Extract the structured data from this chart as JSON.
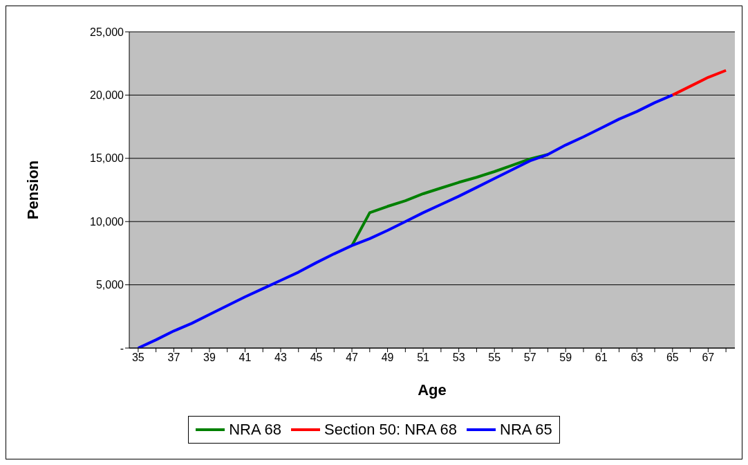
{
  "chart_data": {
    "type": "line",
    "xlabel": "Age",
    "ylabel": "Pension",
    "categories": [
      "35",
      null,
      "37",
      null,
      "39",
      null,
      "41",
      null,
      "43",
      null,
      "45",
      null,
      "47",
      null,
      "49",
      null,
      "51",
      null,
      "53",
      null,
      "55",
      null,
      "57",
      null,
      "59",
      null,
      "61",
      null,
      "63",
      null,
      "65",
      null,
      "67",
      null
    ],
    "series": [
      {
        "name": "NRA 68",
        "color": "#008000",
        "values": [
          null,
          null,
          null,
          null,
          null,
          null,
          null,
          null,
          null,
          null,
          null,
          null,
          8100,
          10700,
          11200,
          11650,
          12200,
          12650,
          13100,
          13500,
          13950,
          14450,
          14950,
          15300,
          null,
          null,
          null,
          null,
          null,
          null,
          null,
          null,
          null,
          null
        ]
      },
      {
        "name": "Section 50: NRA 68",
        "color": "#ff0000",
        "values": [
          null,
          null,
          null,
          null,
          null,
          null,
          null,
          null,
          null,
          null,
          null,
          null,
          null,
          null,
          null,
          null,
          null,
          null,
          null,
          null,
          null,
          null,
          null,
          null,
          null,
          null,
          null,
          null,
          null,
          null,
          20000,
          20700,
          21400,
          21950
        ]
      },
      {
        "name": "NRA 65",
        "color": "#0000ff",
        "values": [
          0,
          650,
          1350,
          1950,
          2650,
          3350,
          4050,
          4700,
          5350,
          6000,
          6750,
          7450,
          8100,
          8650,
          9300,
          10000,
          10700,
          11350,
          12000,
          12700,
          13400,
          14100,
          14800,
          15300,
          16050,
          16700,
          17400,
          18100,
          18700,
          19400,
          20000,
          null,
          null,
          null
        ]
      }
    ],
    "ylim": [
      0,
      25000
    ],
    "yticks": [
      {
        "value": 0,
        "label": "-"
      },
      {
        "value": 5000,
        "label": "5,000"
      },
      {
        "value": 10000,
        "label": "10,000"
      },
      {
        "value": 15000,
        "label": "15,000"
      },
      {
        "value": 20000,
        "label": "20,000"
      },
      {
        "value": 25000,
        "label": "25,000"
      }
    ],
    "grid": "y",
    "legend": "bottom",
    "marker": "none",
    "line_style": "solid"
  }
}
